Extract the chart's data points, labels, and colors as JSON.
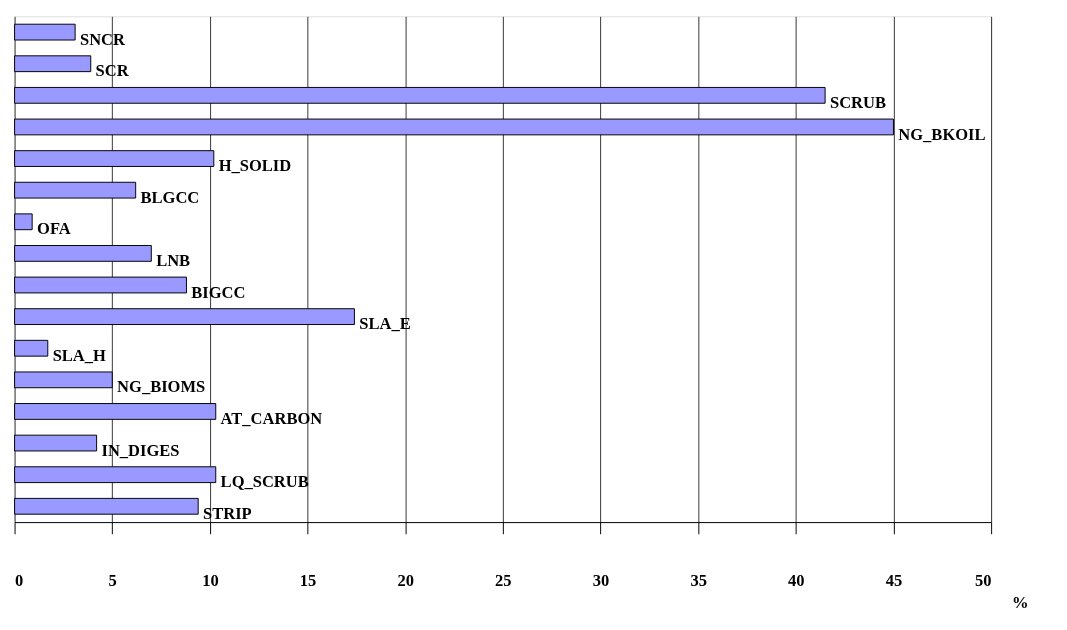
{
  "chart_data": {
    "type": "bar",
    "orientation": "horizontal",
    "categories": [
      "SNCR",
      "SCR",
      "SCRUB",
      "NG_BKOIL",
      "H_SOLID",
      "BLGCC",
      "OFA",
      "LNB",
      "BIGCC",
      "SLA_E",
      "SLA_H",
      "NG_BIOMS",
      "AT_CARBON",
      "IN_DIGES",
      "LQ_SCRUB",
      "STRIP"
    ],
    "values": [
      3.1,
      3.9,
      41.5,
      45,
      10.2,
      6.2,
      0.9,
      7.0,
      8.8,
      17.4,
      1.7,
      5.0,
      10.3,
      4.2,
      10.3,
      9.4
    ],
    "color": "#9999ff",
    "xlim": [
      0,
      50
    ],
    "xticks": [
      0,
      5,
      10,
      15,
      20,
      25,
      30,
      35,
      40,
      45,
      50
    ],
    "xlabel": "%",
    "grid": "x"
  }
}
